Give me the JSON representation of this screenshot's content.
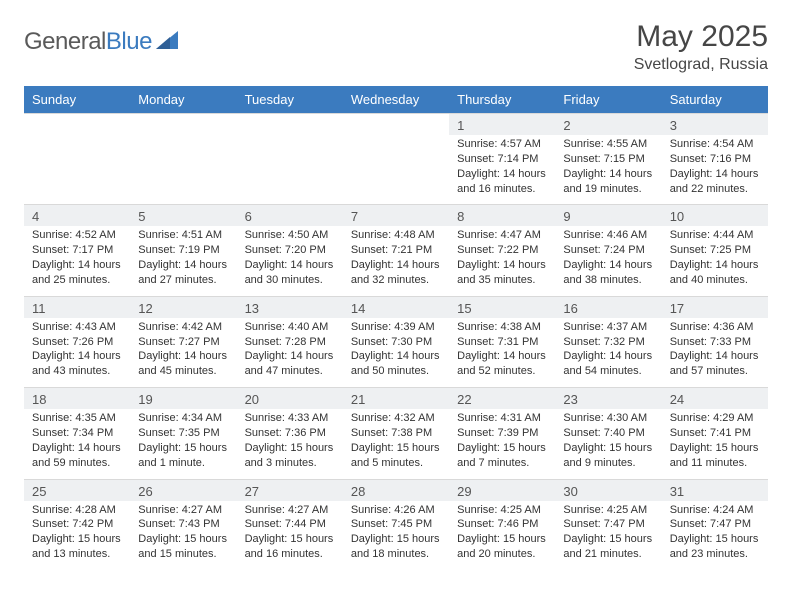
{
  "brand": {
    "name_a": "General",
    "name_b": "Blue"
  },
  "title": "May 2025",
  "location": "Svetlograd, Russia",
  "colors": {
    "header_bg": "#3b7bbf",
    "header_text": "#ffffff",
    "daynum_bg": "#eef0f2",
    "text": "#333333",
    "title_text": "#464646",
    "logo_gray": "#5a5a5a",
    "logo_blue": "#3b7bbf"
  },
  "typography": {
    "title_fontsize": 30,
    "location_fontsize": 16,
    "dayname_fontsize": 13,
    "daynum_fontsize": 13,
    "detail_fontsize": 11
  },
  "weekdays": [
    "Sunday",
    "Monday",
    "Tuesday",
    "Wednesday",
    "Thursday",
    "Friday",
    "Saturday"
  ],
  "weeks": [
    [
      null,
      null,
      null,
      null,
      {
        "n": "1",
        "sr": "Sunrise: 4:57 AM",
        "ss": "Sunset: 7:14 PM",
        "dl": "Daylight: 14 hours and 16 minutes."
      },
      {
        "n": "2",
        "sr": "Sunrise: 4:55 AM",
        "ss": "Sunset: 7:15 PM",
        "dl": "Daylight: 14 hours and 19 minutes."
      },
      {
        "n": "3",
        "sr": "Sunrise: 4:54 AM",
        "ss": "Sunset: 7:16 PM",
        "dl": "Daylight: 14 hours and 22 minutes."
      }
    ],
    [
      {
        "n": "4",
        "sr": "Sunrise: 4:52 AM",
        "ss": "Sunset: 7:17 PM",
        "dl": "Daylight: 14 hours and 25 minutes."
      },
      {
        "n": "5",
        "sr": "Sunrise: 4:51 AM",
        "ss": "Sunset: 7:19 PM",
        "dl": "Daylight: 14 hours and 27 minutes."
      },
      {
        "n": "6",
        "sr": "Sunrise: 4:50 AM",
        "ss": "Sunset: 7:20 PM",
        "dl": "Daylight: 14 hours and 30 minutes."
      },
      {
        "n": "7",
        "sr": "Sunrise: 4:48 AM",
        "ss": "Sunset: 7:21 PM",
        "dl": "Daylight: 14 hours and 32 minutes."
      },
      {
        "n": "8",
        "sr": "Sunrise: 4:47 AM",
        "ss": "Sunset: 7:22 PM",
        "dl": "Daylight: 14 hours and 35 minutes."
      },
      {
        "n": "9",
        "sr": "Sunrise: 4:46 AM",
        "ss": "Sunset: 7:24 PM",
        "dl": "Daylight: 14 hours and 38 minutes."
      },
      {
        "n": "10",
        "sr": "Sunrise: 4:44 AM",
        "ss": "Sunset: 7:25 PM",
        "dl": "Daylight: 14 hours and 40 minutes."
      }
    ],
    [
      {
        "n": "11",
        "sr": "Sunrise: 4:43 AM",
        "ss": "Sunset: 7:26 PM",
        "dl": "Daylight: 14 hours and 43 minutes."
      },
      {
        "n": "12",
        "sr": "Sunrise: 4:42 AM",
        "ss": "Sunset: 7:27 PM",
        "dl": "Daylight: 14 hours and 45 minutes."
      },
      {
        "n": "13",
        "sr": "Sunrise: 4:40 AM",
        "ss": "Sunset: 7:28 PM",
        "dl": "Daylight: 14 hours and 47 minutes."
      },
      {
        "n": "14",
        "sr": "Sunrise: 4:39 AM",
        "ss": "Sunset: 7:30 PM",
        "dl": "Daylight: 14 hours and 50 minutes."
      },
      {
        "n": "15",
        "sr": "Sunrise: 4:38 AM",
        "ss": "Sunset: 7:31 PM",
        "dl": "Daylight: 14 hours and 52 minutes."
      },
      {
        "n": "16",
        "sr": "Sunrise: 4:37 AM",
        "ss": "Sunset: 7:32 PM",
        "dl": "Daylight: 14 hours and 54 minutes."
      },
      {
        "n": "17",
        "sr": "Sunrise: 4:36 AM",
        "ss": "Sunset: 7:33 PM",
        "dl": "Daylight: 14 hours and 57 minutes."
      }
    ],
    [
      {
        "n": "18",
        "sr": "Sunrise: 4:35 AM",
        "ss": "Sunset: 7:34 PM",
        "dl": "Daylight: 14 hours and 59 minutes."
      },
      {
        "n": "19",
        "sr": "Sunrise: 4:34 AM",
        "ss": "Sunset: 7:35 PM",
        "dl": "Daylight: 15 hours and 1 minute."
      },
      {
        "n": "20",
        "sr": "Sunrise: 4:33 AM",
        "ss": "Sunset: 7:36 PM",
        "dl": "Daylight: 15 hours and 3 minutes."
      },
      {
        "n": "21",
        "sr": "Sunrise: 4:32 AM",
        "ss": "Sunset: 7:38 PM",
        "dl": "Daylight: 15 hours and 5 minutes."
      },
      {
        "n": "22",
        "sr": "Sunrise: 4:31 AM",
        "ss": "Sunset: 7:39 PM",
        "dl": "Daylight: 15 hours and 7 minutes."
      },
      {
        "n": "23",
        "sr": "Sunrise: 4:30 AM",
        "ss": "Sunset: 7:40 PM",
        "dl": "Daylight: 15 hours and 9 minutes."
      },
      {
        "n": "24",
        "sr": "Sunrise: 4:29 AM",
        "ss": "Sunset: 7:41 PM",
        "dl": "Daylight: 15 hours and 11 minutes."
      }
    ],
    [
      {
        "n": "25",
        "sr": "Sunrise: 4:28 AM",
        "ss": "Sunset: 7:42 PM",
        "dl": "Daylight: 15 hours and 13 minutes."
      },
      {
        "n": "26",
        "sr": "Sunrise: 4:27 AM",
        "ss": "Sunset: 7:43 PM",
        "dl": "Daylight: 15 hours and 15 minutes."
      },
      {
        "n": "27",
        "sr": "Sunrise: 4:27 AM",
        "ss": "Sunset: 7:44 PM",
        "dl": "Daylight: 15 hours and 16 minutes."
      },
      {
        "n": "28",
        "sr": "Sunrise: 4:26 AM",
        "ss": "Sunset: 7:45 PM",
        "dl": "Daylight: 15 hours and 18 minutes."
      },
      {
        "n": "29",
        "sr": "Sunrise: 4:25 AM",
        "ss": "Sunset: 7:46 PM",
        "dl": "Daylight: 15 hours and 20 minutes."
      },
      {
        "n": "30",
        "sr": "Sunrise: 4:25 AM",
        "ss": "Sunset: 7:47 PM",
        "dl": "Daylight: 15 hours and 21 minutes."
      },
      {
        "n": "31",
        "sr": "Sunrise: 4:24 AM",
        "ss": "Sunset: 7:47 PM",
        "dl": "Daylight: 15 hours and 23 minutes."
      }
    ]
  ]
}
